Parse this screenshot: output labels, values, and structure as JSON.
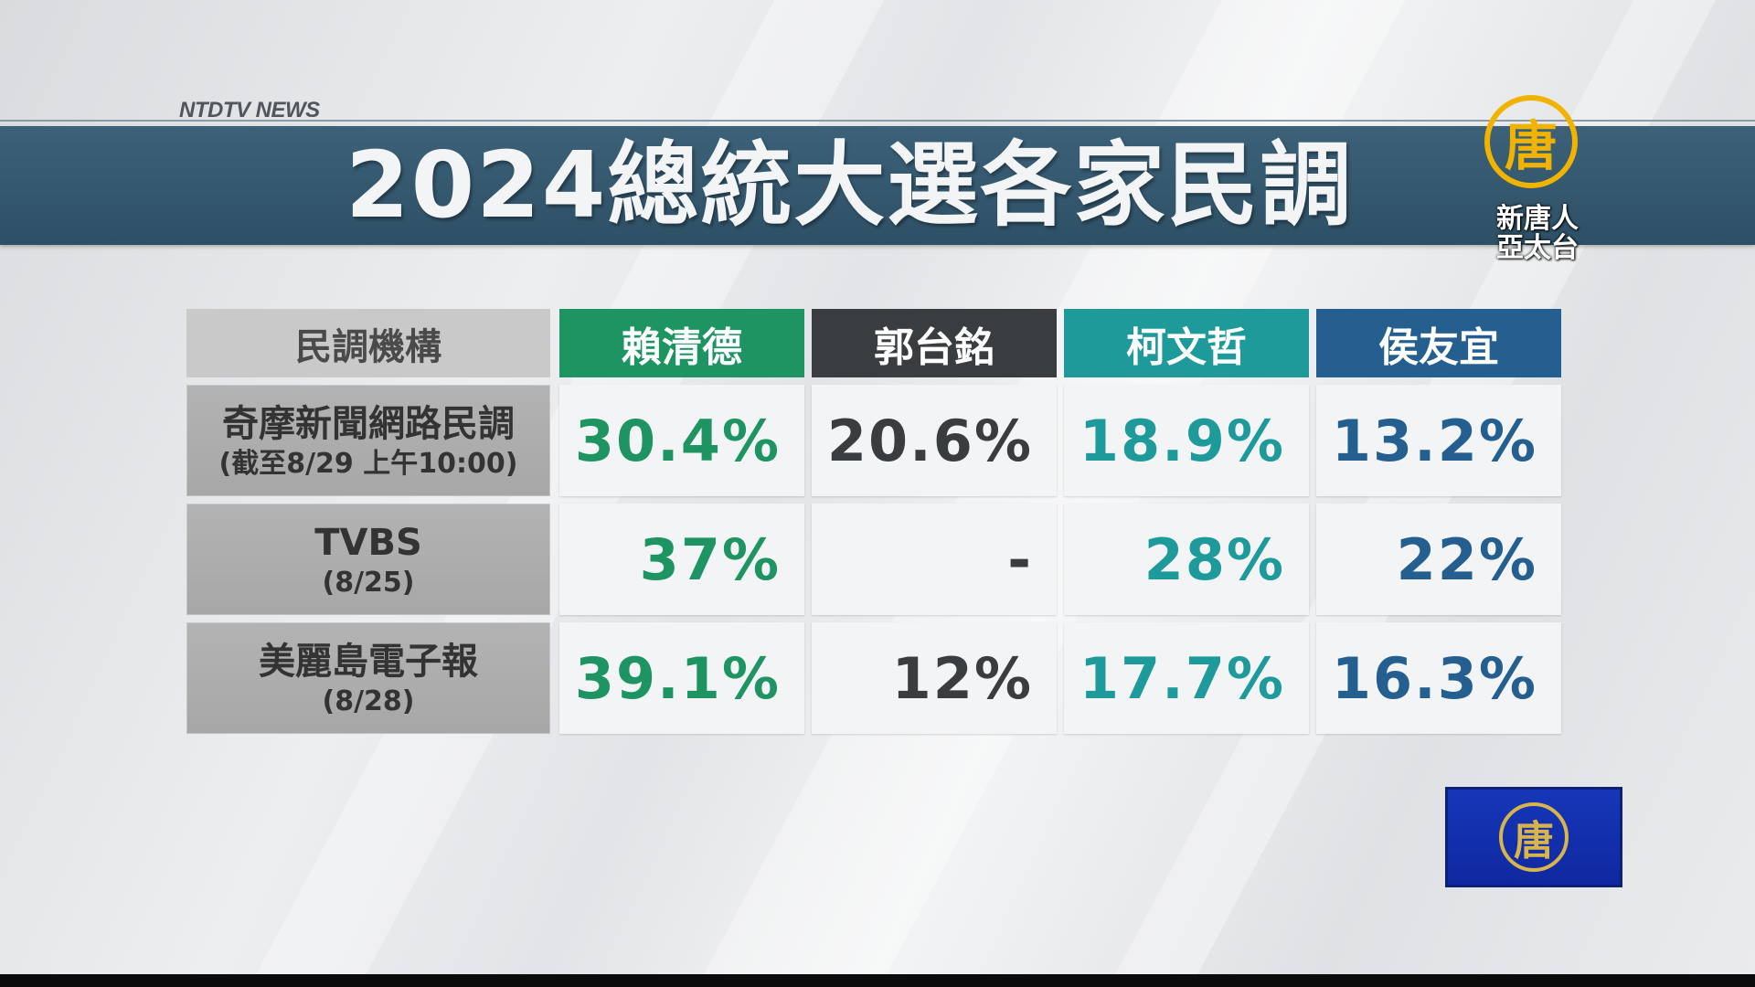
{
  "network_label": "NTDTV NEWS",
  "title": "2024總統大選各家民調",
  "channel_logo": {
    "emblem_char": "唐",
    "line1": "新唐人",
    "line2": "亞太台"
  },
  "corner_logo": {
    "emblem_char": "唐"
  },
  "colors": {
    "title_bar": "#2e5066",
    "lai": "#1e9463",
    "guo": "#3a3d40",
    "ko": "#1e9a9a",
    "hou": "#245f8f",
    "org_cell": "#a7a7a7"
  },
  "table": {
    "header": {
      "org": "民調機構",
      "candidates": [
        "賴清德",
        "郭台銘",
        "柯文哲",
        "侯友宜"
      ]
    },
    "rows": [
      {
        "org": "奇摩新聞網路民調",
        "date": "(截至8/29 上午10:00)",
        "values": [
          "30.4%",
          "20.6%",
          "18.9%",
          "13.2%"
        ]
      },
      {
        "org": "TVBS",
        "date": "(8/25)",
        "values": [
          "37%",
          "-",
          "28%",
          "22%"
        ]
      },
      {
        "org": "美麗島電子報",
        "date": "(8/28)",
        "values": [
          "39.1%",
          "12%",
          "17.7%",
          "16.3%"
        ]
      }
    ]
  }
}
